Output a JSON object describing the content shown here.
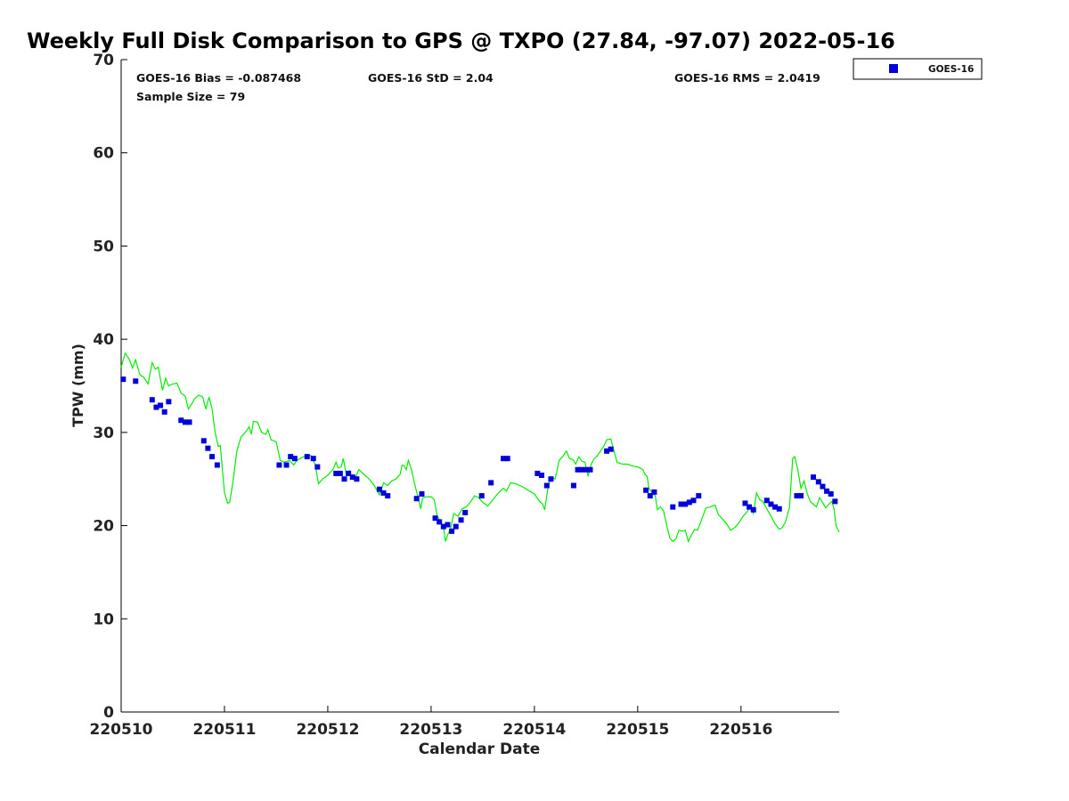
{
  "chart_data": {
    "type": "scatter",
    "title": "Weekly Full Disk Comparison to GPS @ TXPO (27.84, -97.07) 2022-05-16",
    "xlabel": "Calendar Date",
    "ylabel": "TPW (mm)",
    "xlim": [
      0,
      6.95
    ],
    "ylim": [
      0,
      70
    ],
    "yticks": [
      0,
      10,
      20,
      30,
      40,
      50,
      60,
      70
    ],
    "xticks": [
      {
        "value": 0,
        "label": "220510"
      },
      {
        "value": 1,
        "label": "220511"
      },
      {
        "value": 2,
        "label": "220512"
      },
      {
        "value": 3,
        "label": "220513"
      },
      {
        "value": 4,
        "label": "220514"
      },
      {
        "value": 5,
        "label": "220515"
      },
      {
        "value": 6,
        "label": "220516"
      }
    ],
    "grid": false,
    "legend_position": "top-right",
    "stats": {
      "bias": "GOES-16 Bias = -0.087468",
      "std": "GOES-16 StD = 2.04",
      "rms": "GOES-16 RMS = 2.0419",
      "sample": "Sample Size = 79"
    },
    "series": [
      {
        "name": "GOES-16",
        "marker": "square",
        "color": "#0000dd",
        "points": [
          [
            0.02,
            35.7
          ],
          [
            0.14,
            35.5
          ],
          [
            0.3,
            33.5
          ],
          [
            0.34,
            32.7
          ],
          [
            0.38,
            32.9
          ],
          [
            0.42,
            32.2
          ],
          [
            0.46,
            33.3
          ],
          [
            0.58,
            31.3
          ],
          [
            0.62,
            31.1
          ],
          [
            0.66,
            31.1
          ],
          [
            0.8,
            29.1
          ],
          [
            0.84,
            28.3
          ],
          [
            0.88,
            27.4
          ],
          [
            0.93,
            26.5
          ],
          [
            1.53,
            26.5
          ],
          [
            1.6,
            26.5
          ],
          [
            1.64,
            27.4
          ],
          [
            1.68,
            27.2
          ],
          [
            1.8,
            27.4
          ],
          [
            1.86,
            27.2
          ],
          [
            1.9,
            26.3
          ],
          [
            2.08,
            25.6
          ],
          [
            2.12,
            25.6
          ],
          [
            2.16,
            25.0
          ],
          [
            2.2,
            25.6
          ],
          [
            2.24,
            25.2
          ],
          [
            2.28,
            25.0
          ],
          [
            2.5,
            23.9
          ],
          [
            2.54,
            23.5
          ],
          [
            2.58,
            23.2
          ],
          [
            2.86,
            22.9
          ],
          [
            2.91,
            23.4
          ],
          [
            3.04,
            20.8
          ],
          [
            3.08,
            20.4
          ],
          [
            3.12,
            19.9
          ],
          [
            3.16,
            20.1
          ],
          [
            3.2,
            19.4
          ],
          [
            3.24,
            19.9
          ],
          [
            3.29,
            20.6
          ],
          [
            3.33,
            21.4
          ],
          [
            3.49,
            23.2
          ],
          [
            3.58,
            24.6
          ],
          [
            3.7,
            27.2
          ],
          [
            3.74,
            27.2
          ],
          [
            4.03,
            25.6
          ],
          [
            4.07,
            25.4
          ],
          [
            4.12,
            24.3
          ],
          [
            4.16,
            25.0
          ],
          [
            4.38,
            24.3
          ],
          [
            4.42,
            26.0
          ],
          [
            4.46,
            26.0
          ],
          [
            4.5,
            26.0
          ],
          [
            4.54,
            26.0
          ],
          [
            4.7,
            28.0
          ],
          [
            4.74,
            28.2
          ],
          [
            5.08,
            23.8
          ],
          [
            5.12,
            23.2
          ],
          [
            5.16,
            23.6
          ],
          [
            5.34,
            22.0
          ],
          [
            5.42,
            22.3
          ],
          [
            5.46,
            22.3
          ],
          [
            5.5,
            22.5
          ],
          [
            5.54,
            22.7
          ],
          [
            5.59,
            23.2
          ],
          [
            6.04,
            22.4
          ],
          [
            6.08,
            22.0
          ],
          [
            6.12,
            21.7
          ],
          [
            6.25,
            22.7
          ],
          [
            6.29,
            22.3
          ],
          [
            6.33,
            22.0
          ],
          [
            6.37,
            21.8
          ],
          [
            6.54,
            23.2
          ],
          [
            6.58,
            23.2
          ],
          [
            6.7,
            25.2
          ],
          [
            6.75,
            24.7
          ],
          [
            6.79,
            24.2
          ],
          [
            6.83,
            23.7
          ],
          [
            6.87,
            23.4
          ],
          [
            6.91,
            22.6
          ]
        ]
      },
      {
        "name": "",
        "color": "#00ee00",
        "points": [
          [
            0.0,
            37.0
          ],
          [
            0.04,
            38.5
          ],
          [
            0.08,
            37.8
          ],
          [
            0.11,
            36.9
          ],
          [
            0.14,
            37.8
          ],
          [
            0.18,
            36.2
          ],
          [
            0.22,
            35.9
          ],
          [
            0.26,
            35.2
          ],
          [
            0.3,
            37.5
          ],
          [
            0.33,
            36.8
          ],
          [
            0.36,
            37.0
          ],
          [
            0.4,
            34.5
          ],
          [
            0.43,
            35.8
          ],
          [
            0.46,
            35.0
          ],
          [
            0.5,
            35.2
          ],
          [
            0.54,
            35.3
          ],
          [
            0.58,
            34.2
          ],
          [
            0.62,
            33.9
          ],
          [
            0.65,
            32.5
          ],
          [
            0.68,
            33.0
          ],
          [
            0.71,
            33.6
          ],
          [
            0.75,
            34.0
          ],
          [
            0.79,
            33.8
          ],
          [
            0.82,
            32.5
          ],
          [
            0.85,
            33.8
          ],
          [
            0.88,
            32.5
          ],
          [
            0.91,
            30.0
          ],
          [
            0.94,
            28.5
          ],
          [
            0.96,
            28.6
          ],
          [
            0.98,
            26.0
          ],
          [
            1.0,
            23.5
          ],
          [
            1.03,
            22.4
          ],
          [
            1.05,
            22.5
          ],
          [
            1.08,
            24.5
          ],
          [
            1.12,
            28.0
          ],
          [
            1.16,
            29.5
          ],
          [
            1.2,
            30.0
          ],
          [
            1.24,
            30.6
          ],
          [
            1.26,
            29.8
          ],
          [
            1.28,
            31.2
          ],
          [
            1.32,
            31.1
          ],
          [
            1.36,
            30.0
          ],
          [
            1.4,
            29.8
          ],
          [
            1.42,
            30.3
          ],
          [
            1.45,
            29.2
          ],
          [
            1.5,
            29.0
          ],
          [
            1.54,
            27.0
          ],
          [
            1.58,
            26.8
          ],
          [
            1.63,
            27.0
          ],
          [
            1.67,
            26.5
          ],
          [
            1.7,
            27.0
          ],
          [
            1.75,
            27.3
          ],
          [
            1.8,
            27.5
          ],
          [
            1.84,
            27.5
          ],
          [
            1.88,
            26.5
          ],
          [
            1.91,
            24.5
          ],
          [
            1.95,
            25.0
          ],
          [
            2.0,
            25.4
          ],
          [
            2.05,
            26.0
          ],
          [
            2.08,
            26.8
          ],
          [
            2.1,
            26.2
          ],
          [
            2.13,
            26.3
          ],
          [
            2.15,
            27.2
          ],
          [
            2.18,
            25.5
          ],
          [
            2.21,
            25.9
          ],
          [
            2.24,
            25.0
          ],
          [
            2.27,
            25.2
          ],
          [
            2.3,
            26.0
          ],
          [
            2.35,
            25.5
          ],
          [
            2.4,
            25.0
          ],
          [
            2.45,
            24.3
          ],
          [
            2.5,
            23.3
          ],
          [
            2.54,
            24.6
          ],
          [
            2.58,
            24.3
          ],
          [
            2.62,
            24.8
          ],
          [
            2.66,
            25.0
          ],
          [
            2.7,
            25.5
          ],
          [
            2.72,
            26.5
          ],
          [
            2.74,
            26.4
          ],
          [
            2.76,
            26.0
          ],
          [
            2.78,
            27.0
          ],
          [
            2.81,
            26.0
          ],
          [
            2.84,
            24.5
          ],
          [
            2.87,
            23.2
          ],
          [
            2.9,
            21.8
          ],
          [
            2.92,
            23.0
          ],
          [
            2.96,
            23.1
          ],
          [
            3.0,
            23.1
          ],
          [
            3.03,
            22.8
          ],
          [
            3.06,
            21.0
          ],
          [
            3.09,
            20.5
          ],
          [
            3.12,
            19.8
          ],
          [
            3.14,
            18.3
          ],
          [
            3.16,
            19.0
          ],
          [
            3.19,
            19.7
          ],
          [
            3.22,
            21.3
          ],
          [
            3.26,
            21.0
          ],
          [
            3.3,
            21.8
          ],
          [
            3.34,
            22.0
          ],
          [
            3.38,
            22.5
          ],
          [
            3.42,
            23.2
          ],
          [
            3.46,
            23.0
          ],
          [
            3.5,
            22.5
          ],
          [
            3.55,
            22.1
          ],
          [
            3.6,
            22.8
          ],
          [
            3.65,
            23.5
          ],
          [
            3.7,
            24.0
          ],
          [
            3.73,
            23.7
          ],
          [
            3.77,
            24.6
          ],
          [
            3.82,
            24.5
          ],
          [
            3.88,
            24.2
          ],
          [
            3.94,
            23.8
          ],
          [
            4.0,
            23.4
          ],
          [
            4.05,
            22.6
          ],
          [
            4.08,
            22.3
          ],
          [
            4.1,
            21.7
          ],
          [
            4.13,
            24.0
          ],
          [
            4.16,
            25.2
          ],
          [
            4.2,
            25.0
          ],
          [
            4.24,
            27.0
          ],
          [
            4.28,
            27.5
          ],
          [
            4.31,
            28.0
          ],
          [
            4.34,
            27.2
          ],
          [
            4.37,
            27.1
          ],
          [
            4.4,
            26.6
          ],
          [
            4.43,
            27.4
          ],
          [
            4.46,
            26.9
          ],
          [
            4.49,
            26.8
          ],
          [
            4.52,
            25.3
          ],
          [
            4.55,
            26.6
          ],
          [
            4.58,
            27.2
          ],
          [
            4.61,
            27.5
          ],
          [
            4.64,
            28.0
          ],
          [
            4.67,
            28.5
          ],
          [
            4.7,
            29.2
          ],
          [
            4.74,
            29.3
          ],
          [
            4.77,
            28.0
          ],
          [
            4.8,
            26.8
          ],
          [
            4.85,
            26.6
          ],
          [
            4.9,
            26.6
          ],
          [
            4.95,
            26.4
          ],
          [
            5.0,
            26.3
          ],
          [
            5.05,
            26.0
          ],
          [
            5.07,
            25.5
          ],
          [
            5.09,
            25.3
          ],
          [
            5.11,
            24.0
          ],
          [
            5.14,
            23.5
          ],
          [
            5.17,
            23.2
          ],
          [
            5.19,
            21.7
          ],
          [
            5.22,
            22.0
          ],
          [
            5.25,
            21.6
          ],
          [
            5.28,
            20.1
          ],
          [
            5.31,
            18.7
          ],
          [
            5.34,
            18.3
          ],
          [
            5.37,
            18.6
          ],
          [
            5.4,
            19.5
          ],
          [
            5.43,
            19.4
          ],
          [
            5.46,
            19.5
          ],
          [
            5.49,
            18.3
          ],
          [
            5.52,
            19.0
          ],
          [
            5.55,
            19.6
          ],
          [
            5.58,
            19.5
          ],
          [
            5.62,
            20.7
          ],
          [
            5.66,
            21.9
          ],
          [
            5.7,
            22.0
          ],
          [
            5.75,
            22.2
          ],
          [
            5.78,
            21.2
          ],
          [
            5.82,
            20.7
          ],
          [
            5.86,
            20.2
          ],
          [
            5.9,
            19.5
          ],
          [
            5.94,
            19.8
          ],
          [
            5.98,
            20.3
          ],
          [
            6.02,
            21.0
          ],
          [
            6.06,
            21.5
          ],
          [
            6.09,
            22.0
          ],
          [
            6.12,
            21.3
          ],
          [
            6.15,
            23.5
          ],
          [
            6.18,
            22.8
          ],
          [
            6.21,
            22.6
          ],
          [
            6.25,
            21.8
          ],
          [
            6.29,
            21.0
          ],
          [
            6.33,
            20.2
          ],
          [
            6.37,
            19.6
          ],
          [
            6.4,
            19.8
          ],
          [
            6.43,
            20.4
          ],
          [
            6.47,
            22.0
          ],
          [
            6.5,
            27.2
          ],
          [
            6.52,
            27.4
          ],
          [
            6.55,
            26.0
          ],
          [
            6.58,
            24.0
          ],
          [
            6.61,
            24.8
          ],
          [
            6.64,
            23.5
          ],
          [
            6.67,
            22.6
          ],
          [
            6.7,
            22.3
          ],
          [
            6.73,
            22.0
          ],
          [
            6.76,
            23.0
          ],
          [
            6.79,
            22.5
          ],
          [
            6.82,
            21.9
          ],
          [
            6.85,
            22.3
          ],
          [
            6.88,
            22.6
          ],
          [
            6.9,
            21.8
          ],
          [
            6.92,
            20.0
          ],
          [
            6.95,
            19.3
          ]
        ]
      }
    ]
  }
}
